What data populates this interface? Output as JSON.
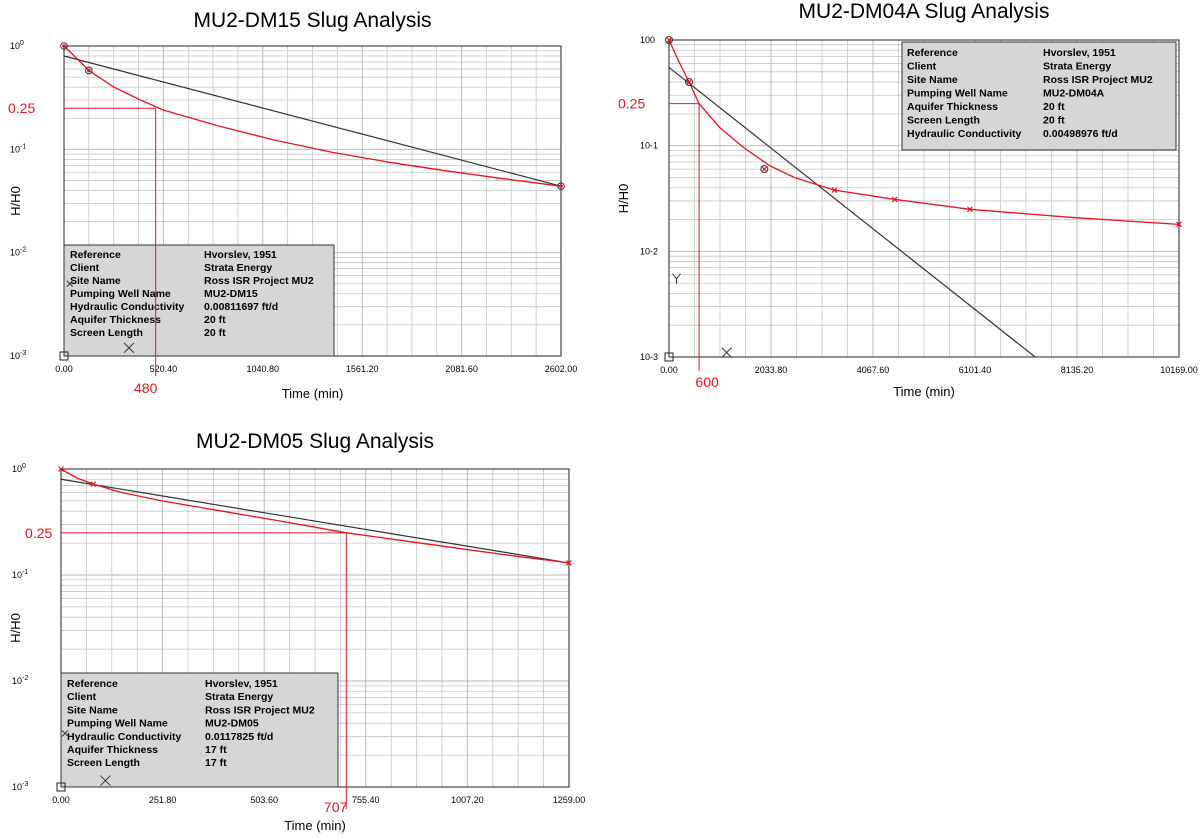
{
  "chart_data": [
    {
      "id": "dm15",
      "type": "line",
      "title": "MU2-DM15 Slug Analysis",
      "xlabel": "Time (min)",
      "ylabel": "H/H0",
      "y_scale": "log",
      "ylim": [
        0.001,
        1
      ],
      "xlim": [
        0,
        2602
      ],
      "x_ticks": [
        "0.00",
        "520.40",
        "1040.80",
        "1561.20",
        "2081.60",
        "2602.00"
      ],
      "y_ticks": [
        "10",
        "10",
        "10",
        "10"
      ],
      "y_tick_exponents": [
        "0",
        "-1",
        "-2",
        "-3"
      ],
      "data_series": {
        "name": "",
        "color": "#e8141b",
        "x": [
          0,
          130,
          260,
          400,
          520,
          800,
          1100,
          1400,
          1700,
          2000,
          2300,
          2602
        ],
        "y": [
          1.0,
          0.58,
          0.4,
          0.3,
          0.24,
          0.17,
          0.123,
          0.094,
          0.075,
          0.062,
          0.052,
          0.044
        ]
      },
      "data_markers": {
        "x": [
          0,
          130,
          2602
        ],
        "y": [
          1.0,
          0.58,
          0.044
        ],
        "symbol": "circle-dot"
      },
      "fit_line": {
        "color": "#333333",
        "x": [
          0,
          2602
        ],
        "y": [
          0.8,
          0.044
        ]
      },
      "ref_lines": {
        "y_value": 0.25,
        "x_value": 480
      },
      "annotations": {
        "y_label": "0.25",
        "x_label": "480"
      },
      "stray_markers": [
        {
          "x": 0,
          "y": 0.001,
          "symbol": "square"
        },
        {
          "x": 340,
          "y": 0.0012,
          "symbol": "x"
        },
        {
          "x": 30,
          "y": 0.005,
          "symbol": "x-small"
        }
      ],
      "info_box": {
        "rows": [
          {
            "label": "Reference",
            "value": "Hvorslev, 1951"
          },
          {
            "label": "Client",
            "value": "Strata Energy"
          },
          {
            "label": "Site Name",
            "value": "Ross ISR Project MU2"
          },
          {
            "label": "Pumping Well Name",
            "value": "MU2-DM15"
          },
          {
            "label": "Hydraulic Conductivity",
            "value": "0.00811697 ft/d"
          },
          {
            "label": "Aquifer Thickness",
            "value": "20 ft"
          },
          {
            "label": "Screen Length",
            "value": "20 ft"
          }
        ]
      }
    },
    {
      "id": "dm04a",
      "type": "line",
      "title": "MU2-DM04A Slug Analysis",
      "xlabel": "Time (min)",
      "ylabel": "H/H0",
      "y_scale": "log",
      "ylim": [
        0.001,
        1
      ],
      "xlim": [
        0,
        10169
      ],
      "x_ticks": [
        "0.00",
        "2033.80",
        "4067.60",
        "6101.40",
        "8135.20",
        "10169.00"
      ],
      "y_ticks": [
        "100",
        "10-1",
        "10-2",
        "10-3"
      ],
      "y_tick_exponents": [
        "",
        "",
        "",
        ""
      ],
      "data_series": {
        "name": "",
        "color": "#e8141b",
        "x": [
          0,
          200,
          400,
          600,
          1000,
          1500,
          2000,
          2500,
          3000,
          3300,
          4500,
          6000,
          8000,
          10169
        ],
        "y": [
          1.0,
          0.62,
          0.4,
          0.25,
          0.15,
          0.095,
          0.065,
          0.05,
          0.042,
          0.038,
          0.031,
          0.025,
          0.021,
          0.018
        ]
      },
      "data_markers": {
        "x": [
          0,
          400,
          1900
        ],
        "y": [
          1.0,
          0.4,
          0.06
        ],
        "symbol": "circle-x"
      },
      "data_crosses": {
        "x": [
          3300,
          4500,
          6000,
          10169
        ],
        "y": [
          0.038,
          0.031,
          0.025,
          0.018
        ],
        "symbol": "x"
      },
      "fit_line": {
        "color": "#333333",
        "x": [
          0,
          7300
        ],
        "y": [
          0.55,
          0.001
        ]
      },
      "ref_lines": {
        "y_value": 0.25,
        "x_value": 600
      },
      "annotations": {
        "y_label": "0.25",
        "x_label": "600"
      },
      "stray_markers": [
        {
          "x": 0,
          "y": 0.001,
          "symbol": "square"
        },
        {
          "x": 1150,
          "y": 0.0011,
          "symbol": "x"
        },
        {
          "x": 150,
          "y": 0.0055,
          "symbol": "y"
        }
      ],
      "info_box": {
        "rows": [
          {
            "label": "Reference",
            "value": "Hvorslev, 1951"
          },
          {
            "label": "Client",
            "value": "Strata Energy"
          },
          {
            "label": "Site Name",
            "value": "Ross ISR Project MU2"
          },
          {
            "label": "Pumping Well Name",
            "value": "MU2-DM04A"
          },
          {
            "label": "Aquifer Thickness",
            "value": "20 ft"
          },
          {
            "label": "Screen Length",
            "value": "20 ft"
          },
          {
            "label": "Hydraulic Conductivity",
            "value": "0.00498976 ft/d"
          }
        ]
      }
    },
    {
      "id": "dm05",
      "type": "line",
      "title": "MU2-DM05 Slug Analysis",
      "xlabel": "Time (min)",
      "ylabel": "H/H0",
      "y_scale": "log",
      "ylim": [
        0.001,
        1
      ],
      "xlim": [
        0,
        1259
      ],
      "x_ticks": [
        "0.00",
        "251.80",
        "503.60",
        "755.40",
        "1007.20",
        "1259.00"
      ],
      "y_ticks": [
        "10",
        "10",
        "10",
        "10"
      ],
      "y_tick_exponents": [
        "0",
        "-1",
        "-2",
        "-3"
      ],
      "data_series": {
        "name": "",
        "color": "#e8141b",
        "x": [
          0,
          40,
          80,
          150,
          250,
          400,
          550,
          707,
          850,
          1000,
          1130,
          1259
        ],
        "y": [
          1.0,
          0.82,
          0.72,
          0.6,
          0.5,
          0.4,
          0.32,
          0.25,
          0.21,
          0.175,
          0.15,
          0.13
        ]
      },
      "data_markers": {
        "x": [
          0,
          80,
          1259
        ],
        "y": [
          1.0,
          0.72,
          0.13
        ],
        "symbol": "x"
      },
      "fit_line": {
        "color": "#333333",
        "x": [
          0,
          1259
        ],
        "y": [
          0.8,
          0.13
        ]
      },
      "ref_lines": {
        "y_value": 0.25,
        "x_value": 707
      },
      "annotations": {
        "y_label": "0.25",
        "x_label": "707"
      },
      "stray_markers": [
        {
          "x": 0,
          "y": 0.001,
          "symbol": "square"
        },
        {
          "x": 110,
          "y": 0.00115,
          "symbol": "x"
        },
        {
          "x": 10,
          "y": 0.0032,
          "symbol": "x-small"
        }
      ],
      "info_box": {
        "rows": [
          {
            "label": "Reference",
            "value": "Hvorslev, 1951"
          },
          {
            "label": "Client",
            "value": "Strata Energy"
          },
          {
            "label": "Site Name",
            "value": "Ross ISR Project MU2"
          },
          {
            "label": "Pumping Well Name",
            "value": "MU2-DM05"
          },
          {
            "label": "Hydraulic Conductivity",
            "value": "0.0117825 ft/d"
          },
          {
            "label": "Aquifer Thickness",
            "value": "17 ft"
          },
          {
            "label": "Screen Length",
            "value": "17 ft"
          }
        ]
      }
    }
  ]
}
